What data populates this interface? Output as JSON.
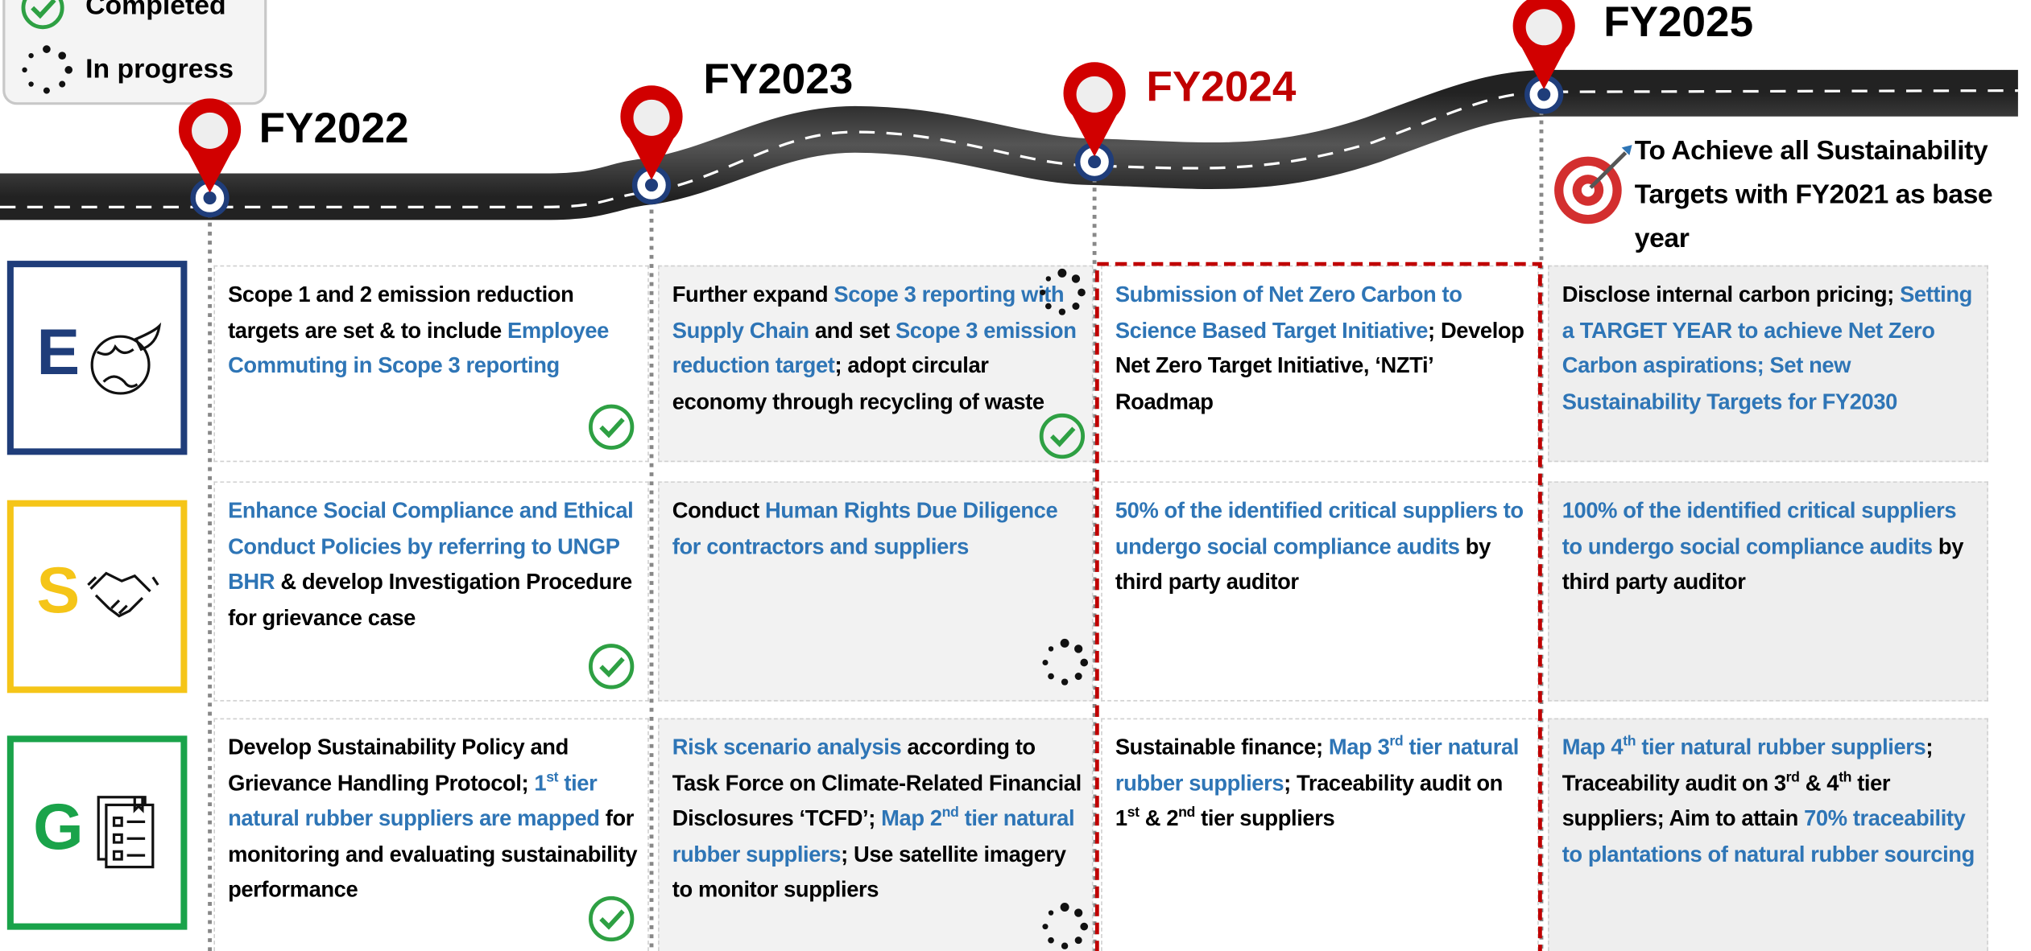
{
  "legend": {
    "items": [
      "Completed",
      "In progress"
    ]
  },
  "colors": {
    "text": "#000000",
    "highlight": "#2e75b6"
  },
  "timeline": [
    {
      "label": "FY2022",
      "color": "#000000"
    },
    {
      "label": "FY2023",
      "color": "#000000"
    },
    {
      "label": "FY2024",
      "color": "#c00000"
    },
    {
      "label": "FY2025",
      "color": "#000000"
    }
  ],
  "goal": "To Achieve all Sustainability Targets with FY2021 as base year",
  "rows": [
    {
      "letter": "E",
      "color": "#1f3d7a",
      "cells": [
        [
          {
            "text": "Scope 1 and 2 emission reduction targets are set & to include "
          },
          {
            "text": "Employee Commuting in Scope 3 reporting",
            "highlight": true
          }
        ],
        [
          {
            "text": "Further expand "
          },
          {
            "text": "Scope 3 reporting with Supply Chain",
            "highlight": true
          },
          {
            "text": " and set "
          },
          {
            "text": "Scope 3 emission reduction target",
            "highlight": true
          },
          {
            "text": "; adopt circular economy through recycling of waste"
          }
        ],
        [
          {
            "text": "Submission of Net Zero Carbon to Science Based Target Initiative",
            "highlight": true
          },
          {
            "text": "; Develop Net Zero Target Initiative, ‘NZTi’ Roadmap"
          }
        ],
        [
          {
            "text": "Disclose internal carbon pricing; "
          },
          {
            "text": "Setting a TARGET YEAR to achieve Net Zero Carbon aspirations; Set new Sustainability Targets for FY2030",
            "highlight": true
          }
        ]
      ]
    },
    {
      "letter": "S",
      "color": "#f5c518",
      "cells": [
        [
          {
            "text": "Enhance Social Compliance and Ethical Conduct Policies by referring to UNGP BHR",
            "highlight": true
          },
          {
            "text": "  & develop Investigation Procedure for grievance case"
          }
        ],
        [
          {
            "text": "Conduct "
          },
          {
            "text": "Human Rights Due Diligence for contractors and suppliers",
            "highlight": true
          }
        ],
        [
          {
            "text": "50% of the identified critical suppliers to undergo social compliance audits",
            "highlight": true
          },
          {
            "text": " by third party auditor"
          }
        ],
        [
          {
            "text": "100% of the identified critical suppliers to undergo social compliance audits",
            "highlight": true
          },
          {
            "text": " by third party auditor"
          }
        ]
      ]
    },
    {
      "letter": "G",
      "color": "#1aa34a",
      "cells": [
        [
          {
            "text": "Develop Sustainability Policy and Grievance Handling Protocol; "
          },
          {
            "text": "1",
            "highlight": true
          },
          {
            "text": "st",
            "highlight": true,
            "sup": true
          },
          {
            "text": " tier natural rubber suppliers are mapped",
            "highlight": true
          },
          {
            "text": " for monitoring and evaluating sustainability performance"
          }
        ],
        [
          {
            "text": "Risk scenario analysis",
            "highlight": true
          },
          {
            "text": " according to Task Force on Climate-Related Financial Disclosures ‘TCFD’; "
          },
          {
            "text": "Map 2",
            "highlight": true
          },
          {
            "text": "nd",
            "highlight": true,
            "sup": true
          },
          {
            "text": " tier natural rubber suppliers",
            "highlight": true
          },
          {
            "text": "; Use satellite imagery to monitor suppliers"
          }
        ],
        [
          {
            "text": "Sustainable finance; "
          },
          {
            "text": "Map 3",
            "highlight": true
          },
          {
            "text": "rd",
            "highlight": true,
            "sup": true
          },
          {
            "text": " tier natural rubber suppliers",
            "highlight": true
          },
          {
            "text": "; Traceability audit on 1"
          },
          {
            "text": "st",
            "sup": true
          },
          {
            "text": " & 2"
          },
          {
            "text": "nd",
            "sup": true
          },
          {
            "text": " tier suppliers"
          }
        ],
        [
          {
            "text": "Map 4",
            "highlight": true
          },
          {
            "text": "th",
            "highlight": true,
            "sup": true
          },
          {
            "text": " tier natural rubber suppliers",
            "highlight": true
          },
          {
            "text": "; Traceability audit on 3"
          },
          {
            "text": "rd",
            "sup": true
          },
          {
            "text": " & 4"
          },
          {
            "text": "th",
            "sup": true
          },
          {
            "text": " tier suppliers; Aim to attain "
          },
          {
            "text": "70% traceability to plantations of natural rubber sourcing",
            "highlight": true
          }
        ]
      ]
    }
  ]
}
